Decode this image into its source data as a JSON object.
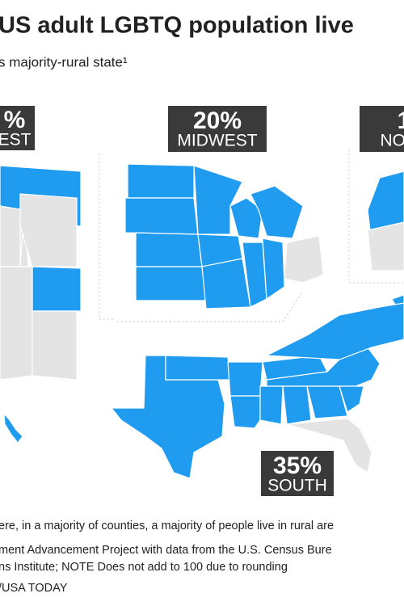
{
  "header": {
    "title": "US adult LGBTQ population live",
    "subtitle": "s majority-rural state¹"
  },
  "regions": [
    {
      "share": "%",
      "name": "EST"
    },
    {
      "share": "20%",
      "name": "MIDWEST"
    },
    {
      "share": "1",
      "name": "NORT"
    },
    {
      "share": "35%",
      "name": "SOUTH"
    }
  ],
  "footnotes": [
    "ere, in a majority of counties, a majority of people live in rural are",
    "ment Advancement Project with data from the U.S. Census Bure",
    "ns Institute; NOTE Does not add to 100 due to rounding",
    "/USA TODAY"
  ]
}
